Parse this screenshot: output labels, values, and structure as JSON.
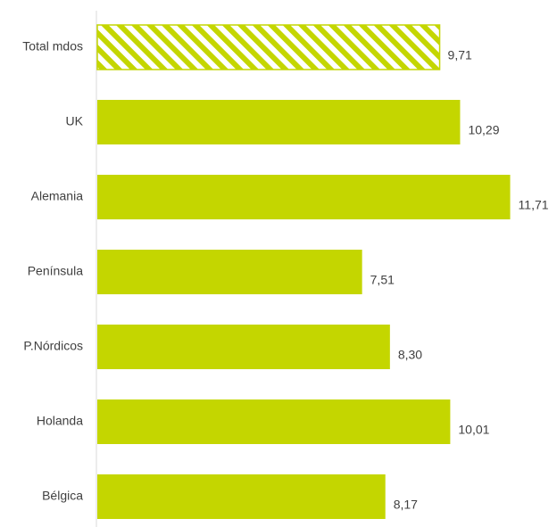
{
  "chart_data": {
    "type": "bar",
    "orientation": "horizontal",
    "title": "",
    "xlabel": "",
    "ylabel": "",
    "categories": [
      "Total mdos",
      "UK",
      "Alemania",
      "Península",
      "P.Nórdicos",
      "Holanda",
      "Bélgica"
    ],
    "values": [
      9.71,
      10.29,
      11.71,
      7.51,
      8.3,
      10.01,
      8.17
    ],
    "value_labels": [
      "9,71",
      "10,29",
      "11,71",
      "7,51",
      "8,30",
      "10,01",
      "8,17"
    ],
    "patterned": [
      true,
      false,
      false,
      false,
      false,
      false,
      false
    ],
    "xlim": [
      0,
      12
    ],
    "grid": false,
    "legend": "none",
    "colors": {
      "bar": "#c4d600",
      "axis": "#d9d9d9",
      "text": "#404040"
    }
  }
}
